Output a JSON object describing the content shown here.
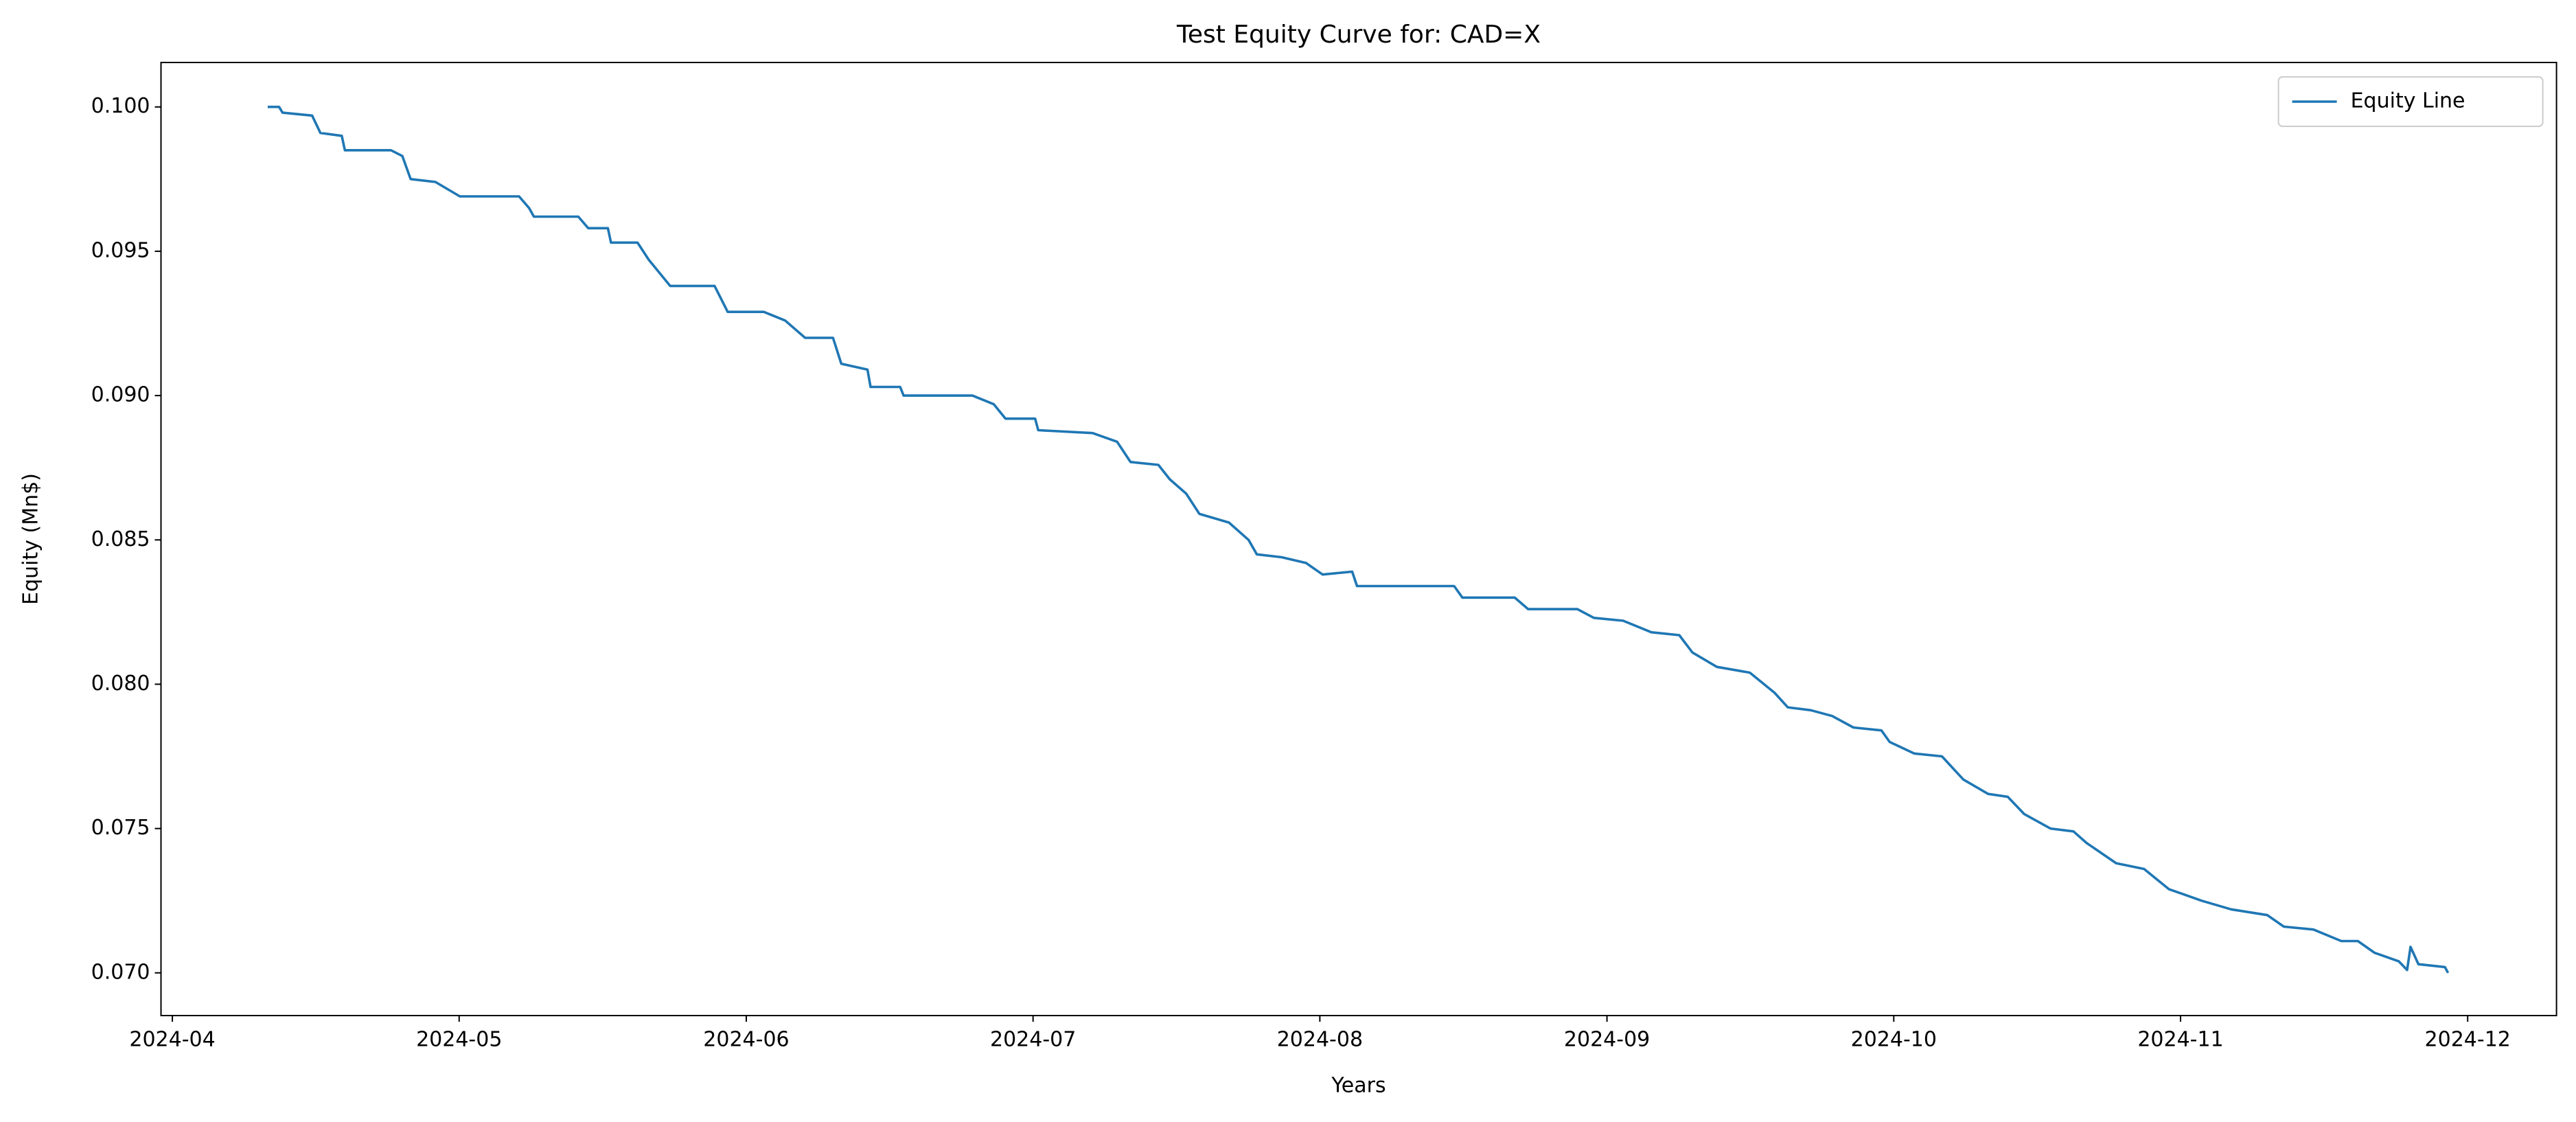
{
  "chart_data": {
    "type": "line",
    "title": "Test Equity Curve for: CAD=X",
    "xlabel": "Years",
    "ylabel": "Equity (Mn$)",
    "x": [
      2024.2777,
      2024.281,
      2024.282,
      2024.2906,
      2024.293,
      2024.2992,
      2024.3001,
      2024.3135,
      2024.3168,
      2024.3192,
      2024.3264,
      2024.3335,
      2024.3507,
      2024.3536,
      2024.355,
      2024.3679,
      2024.3708,
      2024.3765,
      2024.3774,
      2024.3851,
      2024.3884,
      2024.3946,
      2024.4075,
      2024.4113,
      2024.4218,
      2024.428,
      2024.4338,
      2024.4419,
      2024.4443,
      2024.4519,
      2024.4528,
      2024.4614,
      2024.4624,
      2024.4824,
      2024.4886,
      2024.492,
      2024.5006,
      2024.5015,
      2024.5173,
      2024.5244,
      2024.5283,
      2024.5364,
      2024.5397,
      2024.5445,
      2024.5483,
      2024.5569,
      2024.5626,
      2024.565,
      2024.5722,
      2024.5793,
      2024.5841,
      2024.5927,
      2024.5941,
      2024.6223,
      2024.6247,
      2024.6399,
      2024.6438,
      2024.6581,
      2024.6629,
      2024.6714,
      2024.6796,
      2024.6877,
      2024.6915,
      2024.6986,
      2024.7082,
      2024.7154,
      2024.7192,
      2024.7259,
      2024.7321,
      2024.7383,
      2024.7464,
      2024.7488,
      2024.7559,
      2024.764,
      2024.7702,
      2024.7774,
      2024.7831,
      2024.7879,
      2024.7955,
      2024.8022,
      2024.806,
      2024.8146,
      2024.8227,
      2024.8299,
      2024.8347,
      2024.8394,
      2024.848,
      2024.8585,
      2024.8633,
      2024.8719,
      2024.88,
      2024.8848,
      2024.8896,
      2024.8967,
      2024.8991,
      2024.9001,
      2024.9024,
      2024.9101,
      2024.911
    ],
    "series": [
      {
        "name": "Equity Line",
        "color": "#1f77b4",
        "values": [
          0.1,
          0.1,
          0.0998,
          0.0997,
          0.0991,
          0.099,
          0.0985,
          0.0985,
          0.0983,
          0.0975,
          0.0974,
          0.0969,
          0.0969,
          0.0965,
          0.0962,
          0.0962,
          0.0958,
          0.0958,
          0.0953,
          0.0953,
          0.0947,
          0.0938,
          0.0938,
          0.0929,
          0.0929,
          0.0926,
          0.092,
          0.092,
          0.0911,
          0.0909,
          0.0903,
          0.0903,
          0.09,
          0.09,
          0.0897,
          0.0892,
          0.0892,
          0.0888,
          0.0887,
          0.0884,
          0.0877,
          0.0876,
          0.0871,
          0.0866,
          0.0859,
          0.0856,
          0.085,
          0.0845,
          0.0844,
          0.0842,
          0.0838,
          0.0839,
          0.0834,
          0.0834,
          0.083,
          0.083,
          0.0826,
          0.0826,
          0.0823,
          0.0822,
          0.0818,
          0.0817,
          0.0811,
          0.0806,
          0.0804,
          0.0797,
          0.0792,
          0.0791,
          0.0789,
          0.0785,
          0.0784,
          0.078,
          0.0776,
          0.0775,
          0.0767,
          0.0762,
          0.0761,
          0.0755,
          0.075,
          0.0749,
          0.0745,
          0.0738,
          0.0736,
          0.0729,
          0.0727,
          0.0725,
          0.0722,
          0.072,
          0.0716,
          0.0715,
          0.0711,
          0.0711,
          0.0707,
          0.0704,
          0.0701,
          0.0709,
          0.0703,
          0.0702,
          0.07
        ]
      }
    ],
    "xlim": [
      2024.2467,
      2024.9425
    ],
    "xticks": [
      {
        "value": 2024.25,
        "label": "2024-04"
      },
      {
        "value": 2024.3333,
        "label": "2024-05"
      },
      {
        "value": 2024.4167,
        "label": "2024-06"
      },
      {
        "value": 2024.5,
        "label": "2024-07"
      },
      {
        "value": 2024.5833,
        "label": "2024-08"
      },
      {
        "value": 2024.6667,
        "label": "2024-09"
      },
      {
        "value": 2024.75,
        "label": "2024-10"
      },
      {
        "value": 2024.8333,
        "label": "2024-11"
      },
      {
        "value": 2024.9167,
        "label": "2024-12"
      }
    ],
    "ylim": [
      0.06852,
      0.10154
    ],
    "yticks": [
      {
        "value": 0.07,
        "label": "0.070"
      },
      0.075,
      {
        "value": 0.08,
        "label": "0.080"
      },
      0.085,
      {
        "value": 0.09,
        "label": "0.090"
      },
      0.095,
      {
        "value": 0.1,
        "label": "0.100"
      }
    ],
    "grid": false,
    "legend": "upper right"
  }
}
